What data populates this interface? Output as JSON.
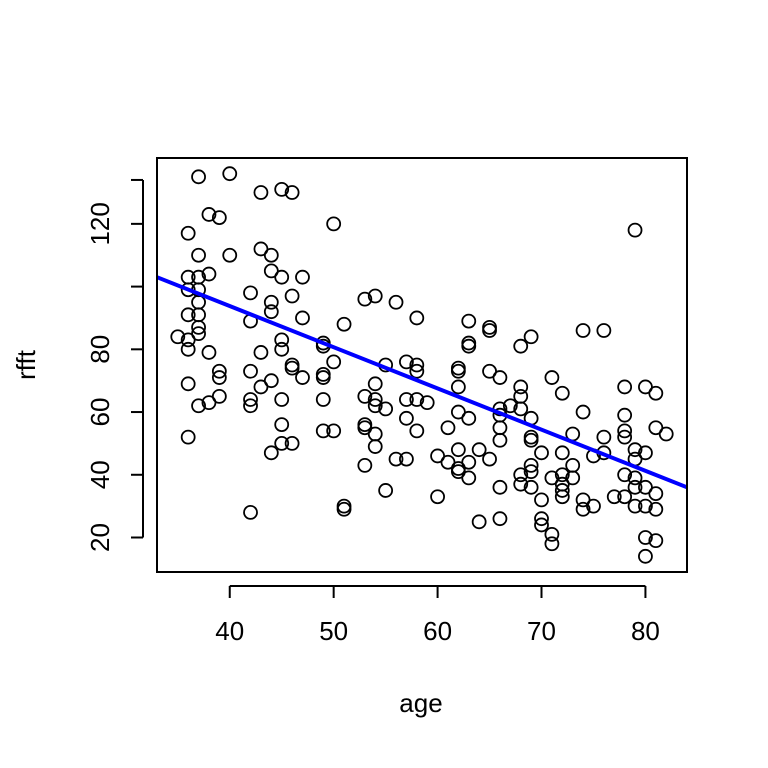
{
  "chart_data": {
    "type": "scatter",
    "title": "",
    "xlabel": "age",
    "ylabel": "rfft",
    "xlim": [
      33,
      84
    ],
    "ylim": [
      9,
      141
    ],
    "x_ticks": [
      40,
      50,
      60,
      70,
      80
    ],
    "y_ticks": [
      20,
      40,
      60,
      80,
      120
    ],
    "grid": false,
    "legend": "none",
    "point_color": "#000000",
    "fit_line": {
      "color": "#0000ff",
      "x": [
        33,
        84
      ],
      "y": [
        103,
        36
      ]
    },
    "points": [
      [
        37,
        135
      ],
      [
        40,
        136
      ],
      [
        43,
        130
      ],
      [
        45,
        131
      ],
      [
        46,
        130
      ],
      [
        38,
        123
      ],
      [
        39,
        122
      ],
      [
        36,
        117
      ],
      [
        50,
        120
      ],
      [
        79,
        118
      ],
      [
        37,
        110
      ],
      [
        40,
        110
      ],
      [
        43,
        112
      ],
      [
        44,
        110
      ],
      [
        44,
        105
      ],
      [
        36,
        103
      ],
      [
        37,
        103
      ],
      [
        38,
        104
      ],
      [
        45,
        103
      ],
      [
        47,
        103
      ],
      [
        36,
        99
      ],
      [
        37,
        99
      ],
      [
        42,
        98
      ],
      [
        46,
        97
      ],
      [
        53,
        96
      ],
      [
        54,
        97
      ],
      [
        56,
        95
      ],
      [
        37,
        95
      ],
      [
        44,
        95
      ],
      [
        44,
        92
      ],
      [
        36,
        91
      ],
      [
        37,
        91
      ],
      [
        47,
        90
      ],
      [
        58,
        90
      ],
      [
        42,
        89
      ],
      [
        51,
        88
      ],
      [
        63,
        89
      ],
      [
        65,
        87
      ],
      [
        65,
        86
      ],
      [
        69,
        84
      ],
      [
        74,
        86
      ],
      [
        76,
        86
      ],
      [
        37,
        87
      ],
      [
        37,
        85
      ],
      [
        35,
        84
      ],
      [
        36,
        83
      ],
      [
        45,
        83
      ],
      [
        45,
        80
      ],
      [
        49,
        82
      ],
      [
        49,
        81
      ],
      [
        63,
        82
      ],
      [
        63,
        81
      ],
      [
        68,
        81
      ],
      [
        36,
        80
      ],
      [
        38,
        79
      ],
      [
        43,
        79
      ],
      [
        50,
        76
      ],
      [
        55,
        75
      ],
      [
        57,
        76
      ],
      [
        58,
        75
      ],
      [
        58,
        73
      ],
      [
        62,
        74
      ],
      [
        62,
        73
      ],
      [
        65,
        73
      ],
      [
        46,
        75
      ],
      [
        46,
        74
      ],
      [
        39,
        73
      ],
      [
        39,
        71
      ],
      [
        42,
        73
      ],
      [
        49,
        72
      ],
      [
        49,
        71
      ],
      [
        47,
        71
      ],
      [
        44,
        70
      ],
      [
        36,
        69
      ],
      [
        43,
        68
      ],
      [
        54,
        69
      ],
      [
        62,
        68
      ],
      [
        68,
        68
      ],
      [
        71,
        71
      ],
      [
        66,
        71
      ],
      [
        39,
        65
      ],
      [
        38,
        63
      ],
      [
        37,
        62
      ],
      [
        42,
        64
      ],
      [
        42,
        62
      ],
      [
        45,
        64
      ],
      [
        53,
        65
      ],
      [
        54,
        64
      ],
      [
        54,
        62
      ],
      [
        55,
        61
      ],
      [
        57,
        64
      ],
      [
        58,
        64
      ],
      [
        59,
        63
      ],
      [
        62,
        60
      ],
      [
        63,
        58
      ],
      [
        66,
        61
      ],
      [
        66,
        59
      ],
      [
        67,
        62
      ],
      [
        68,
        65
      ],
      [
        68,
        61
      ],
      [
        69,
        58
      ],
      [
        72,
        66
      ],
      [
        74,
        60
      ],
      [
        78,
        68
      ],
      [
        80,
        68
      ],
      [
        81,
        66
      ],
      [
        78,
        59
      ],
      [
        36,
        52
      ],
      [
        45,
        56
      ],
      [
        45,
        50
      ],
      [
        46,
        50
      ],
      [
        44,
        47
      ],
      [
        49,
        64
      ],
      [
        49,
        54
      ],
      [
        50,
        54
      ],
      [
        53,
        56
      ],
      [
        53,
        55
      ],
      [
        54,
        53
      ],
      [
        54,
        49
      ],
      [
        56,
        45
      ],
      [
        57,
        45
      ],
      [
        57,
        58
      ],
      [
        58,
        54
      ],
      [
        60,
        46
      ],
      [
        61,
        55
      ],
      [
        61,
        44
      ],
      [
        62,
        48
      ],
      [
        62,
        42
      ],
      [
        62,
        41
      ],
      [
        63,
        44
      ],
      [
        64,
        48
      ],
      [
        65,
        45
      ],
      [
        66,
        55
      ],
      [
        66,
        51
      ],
      [
        69,
        52
      ],
      [
        69,
        51
      ],
      [
        70,
        47
      ],
      [
        72,
        47
      ],
      [
        73,
        53
      ],
      [
        75,
        46
      ],
      [
        76,
        52
      ],
      [
        76,
        47
      ],
      [
        78,
        54
      ],
      [
        78,
        52
      ],
      [
        79,
        48
      ],
      [
        79,
        45
      ],
      [
        80,
        47
      ],
      [
        81,
        55
      ],
      [
        82,
        53
      ],
      [
        53,
        43
      ],
      [
        55,
        35
      ],
      [
        60,
        33
      ],
      [
        64,
        25
      ],
      [
        66,
        26
      ],
      [
        66,
        36
      ],
      [
        63,
        39
      ],
      [
        68,
        40
      ],
      [
        68,
        37
      ],
      [
        69,
        43
      ],
      [
        69,
        41
      ],
      [
        69,
        36
      ],
      [
        70,
        32
      ],
      [
        70,
        26
      ],
      [
        70,
        24
      ],
      [
        71,
        39
      ],
      [
        71,
        21
      ],
      [
        71,
        18
      ],
      [
        72,
        40
      ],
      [
        72,
        37
      ],
      [
        72,
        35
      ],
      [
        72,
        33
      ],
      [
        73,
        43
      ],
      [
        73,
        39
      ],
      [
        74,
        32
      ],
      [
        74,
        29
      ],
      [
        75,
        30
      ],
      [
        77,
        33
      ],
      [
        78,
        33
      ],
      [
        78,
        40
      ],
      [
        79,
        39
      ],
      [
        79,
        36
      ],
      [
        79,
        30
      ],
      [
        80,
        36
      ],
      [
        80,
        30
      ],
      [
        80,
        20
      ],
      [
        80,
        14
      ],
      [
        81,
        34
      ],
      [
        81,
        29
      ],
      [
        81,
        19
      ],
      [
        42,
        28
      ],
      [
        51,
        30
      ],
      [
        51,
        29
      ]
    ]
  }
}
